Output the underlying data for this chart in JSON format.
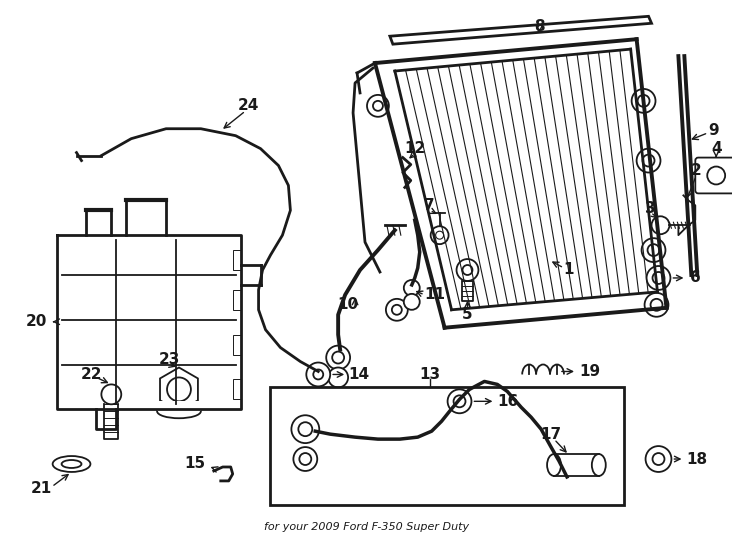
{
  "bg_color": "#ffffff",
  "line_color": "#1a1a1a",
  "fig_width": 7.34,
  "fig_height": 5.4,
  "dpi": 100,
  "subtitle": "for your 2009 Ford F-350 Super Duty"
}
